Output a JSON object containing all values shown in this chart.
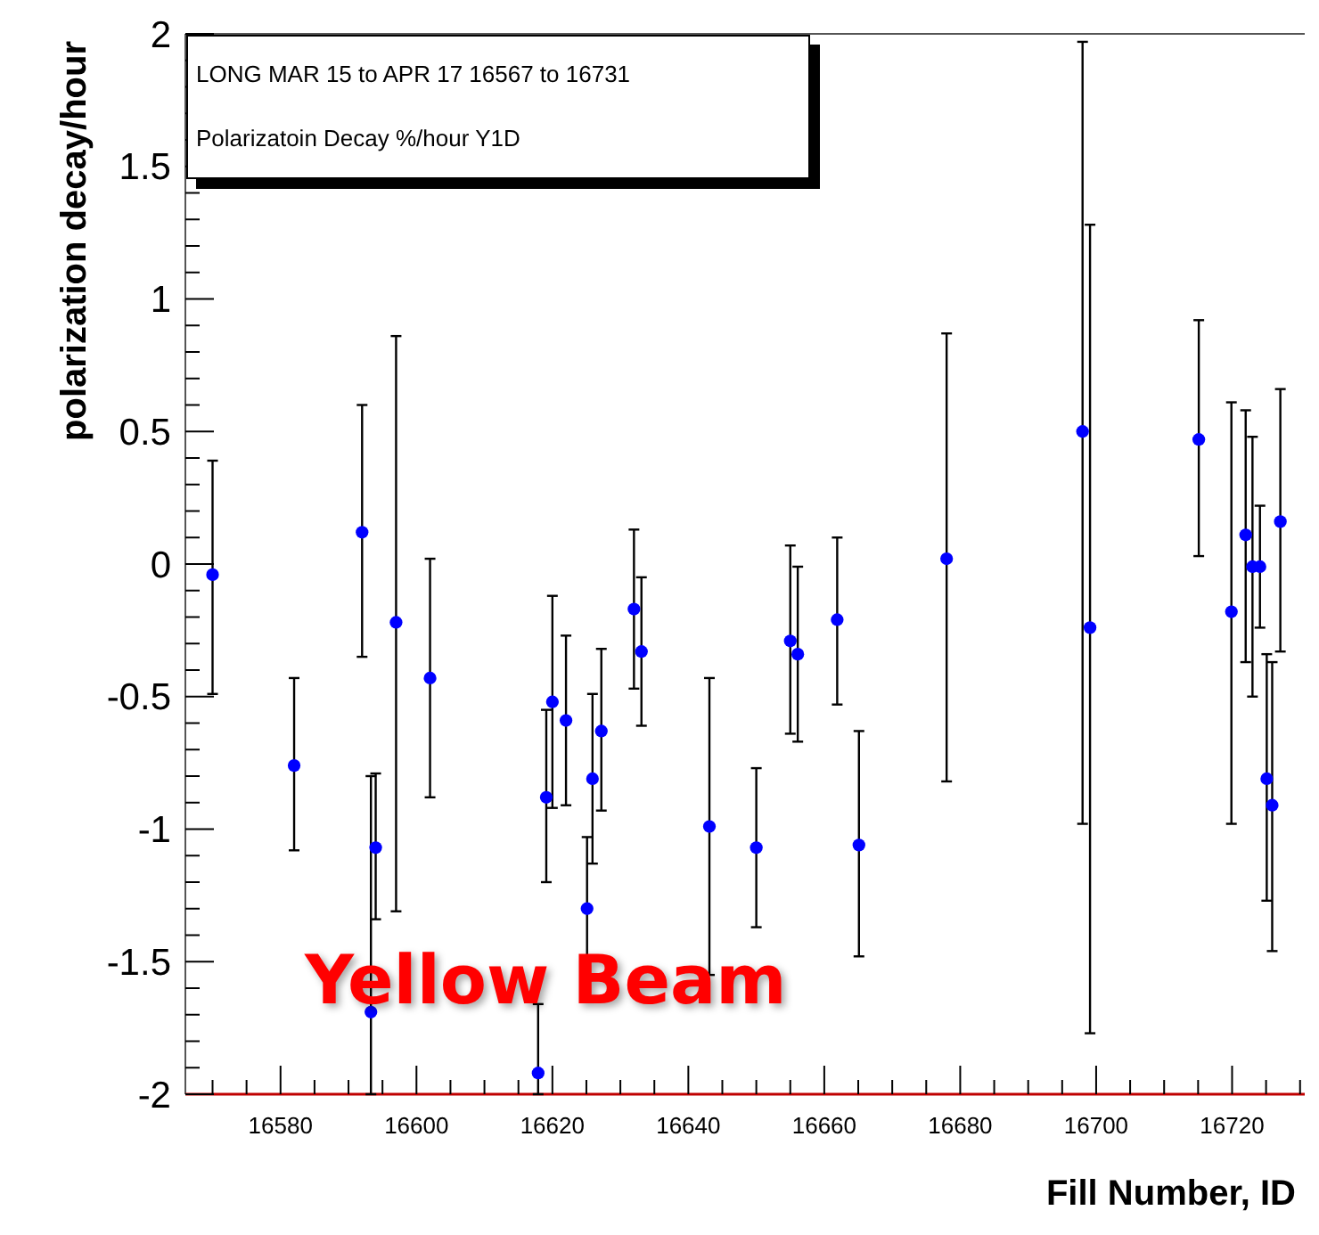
{
  "chart_data": {
    "type": "scatter",
    "title": "LONG MAR 15 to APR 17 16567 to 16731",
    "subtitle": "Polarizatoin Decay %/hour Y1D",
    "xlabel": "Fill Number, ID",
    "ylabel": "polarization decay/hour",
    "annotations": [
      "Yellow Beam"
    ],
    "x": [
      16570,
      16582,
      16592,
      16593.3,
      16594,
      16597,
      16602,
      16617.9,
      16619.1,
      16620,
      16622,
      16625.1,
      16625.9,
      16627.2,
      16632,
      16633.1,
      16643.1,
      16650,
      16655,
      16656.1,
      16661.9,
      16665.1,
      16678,
      16698,
      16699.1,
      16715.1,
      16719.9,
      16722,
      16723,
      16724.1,
      16725.1,
      16725.9,
      16727.1
    ],
    "values": [
      -0.04,
      -0.76,
      0.12,
      -1.69,
      -1.07,
      -0.22,
      -0.43,
      -1.92,
      -0.88,
      -0.52,
      -0.59,
      -1.3,
      -0.81,
      -0.63,
      -0.17,
      -0.33,
      -0.99,
      -1.07,
      -0.29,
      -0.34,
      -0.21,
      -1.06,
      0.02,
      0.5,
      -0.24,
      0.47,
      -0.18,
      0.11,
      -0.01,
      -0.01,
      -0.81,
      -0.91,
      0.16
    ],
    "errors": [
      [
        -0.49,
        0.39
      ],
      [
        -1.08,
        -0.43
      ],
      [
        -0.35,
        0.6
      ],
      [
        -2,
        -0.8
      ],
      [
        -1.34,
        -0.79
      ],
      [
        -1.31,
        0.86
      ],
      [
        -0.88,
        0.02
      ],
      [
        -2,
        -1.66
      ],
      [
        -1.2,
        -0.55
      ],
      [
        -0.92,
        -0.12
      ],
      [
        -0.91,
        -0.27
      ],
      [
        -1.57,
        -1.03
      ],
      [
        -1.13,
        -0.49
      ],
      [
        -0.93,
        -0.32
      ],
      [
        -0.47,
        0.13
      ],
      [
        -0.61,
        -0.05
      ],
      [
        -1.55,
        -0.43
      ],
      [
        -1.37,
        -0.77
      ],
      [
        -0.64,
        0.07
      ],
      [
        -0.67,
        -0.01
      ],
      [
        -0.53,
        0.1
      ],
      [
        -1.48,
        -0.63
      ],
      [
        -0.82,
        0.87
      ],
      [
        -0.98,
        1.97
      ],
      [
        -1.77,
        1.28
      ],
      [
        0.03,
        0.92
      ],
      [
        -0.98,
        0.61
      ],
      [
        -0.37,
        0.58
      ],
      [
        -0.5,
        0.48
      ],
      [
        -0.24,
        0.22
      ],
      [
        -1.27,
        -0.34
      ],
      [
        -1.46,
        -0.37
      ],
      [
        -0.33,
        0.66
      ]
    ],
    "color": "#0000ff",
    "marker": "circle",
    "xlim": [
      16566,
      16732
    ],
    "ylim": [
      -2,
      2
    ],
    "xticks": [
      {
        "value": 16570,
        "label": null
      },
      {
        "value": 16575,
        "label": null
      },
      16580,
      {
        "value": 16585,
        "label": null
      },
      {
        "value": 16590,
        "label": null
      },
      {
        "value": 16595,
        "label": null
      },
      16600,
      {
        "value": 16605,
        "label": null
      },
      {
        "value": 16610,
        "label": null
      },
      {
        "value": 16615,
        "label": null
      },
      16620,
      {
        "value": 16625,
        "label": null
      },
      {
        "value": 16630,
        "label": null
      },
      {
        "value": 16635,
        "label": null
      },
      16640,
      {
        "value": 16645,
        "label": null
      },
      {
        "value": 16650,
        "label": null
      },
      {
        "value": 16655,
        "label": null
      },
      16660,
      {
        "value": 16665,
        "label": null
      },
      {
        "value": 16670,
        "label": null
      },
      {
        "value": 16675,
        "label": null
      },
      16680,
      {
        "value": 16685,
        "label": null
      },
      {
        "value": 16690,
        "label": null
      },
      {
        "value": 16695,
        "label": null
      },
      16700,
      {
        "value": 16705,
        "label": null
      },
      {
        "value": 16710,
        "label": null
      },
      {
        "value": 16715,
        "label": null
      },
      16720,
      {
        "value": 16725,
        "label": null
      },
      {
        "value": 16730,
        "label": null
      }
    ],
    "yticks": [
      -2,
      {
        "value": -1.9,
        "label": null
      },
      {
        "value": -1.8,
        "label": null
      },
      {
        "value": -1.7,
        "label": null
      },
      {
        "value": -1.6,
        "label": null
      },
      -1.5,
      {
        "value": -1.4,
        "label": null
      },
      {
        "value": -1.3,
        "label": null
      },
      {
        "value": -1.2,
        "label": null
      },
      {
        "value": -1.1,
        "label": null
      },
      -1,
      {
        "value": -0.9,
        "label": null
      },
      {
        "value": -0.8,
        "label": null
      },
      {
        "value": -0.7,
        "label": null
      },
      {
        "value": -0.6,
        "label": null
      },
      -0.5,
      {
        "value": -0.4,
        "label": null
      },
      {
        "value": -0.3,
        "label": null
      },
      {
        "value": -0.2,
        "label": null
      },
      {
        "value": -0.1,
        "label": null
      },
      0,
      {
        "value": 0.1,
        "label": null
      },
      {
        "value": 0.2,
        "label": null
      },
      {
        "value": 0.3,
        "label": null
      },
      {
        "value": 0.4,
        "label": null
      },
      0.5,
      {
        "value": 0.6,
        "label": null
      },
      {
        "value": 0.7,
        "label": null
      },
      {
        "value": 0.8,
        "label": null
      },
      {
        "value": 0.9,
        "label": null
      },
      1,
      {
        "value": 1.1,
        "label": null
      },
      {
        "value": 1.2,
        "label": null
      },
      {
        "value": 1.3,
        "label": null
      },
      {
        "value": 1.4,
        "label": null
      },
      1.5,
      {
        "value": 1.6,
        "label": null
      },
      {
        "value": 1.7,
        "label": null
      },
      {
        "value": 1.8,
        "label": null
      },
      {
        "value": 1.9,
        "label": null
      },
      2
    ]
  }
}
